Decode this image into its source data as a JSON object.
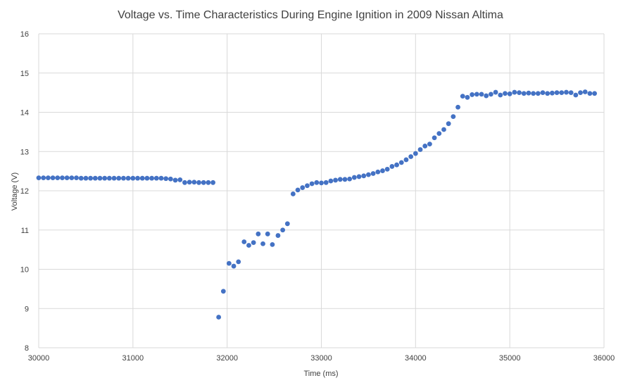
{
  "chart_data": {
    "type": "scatter",
    "title": "Voltage vs. Time Characteristics During Engine Ignition in 2009 Nissan Altima",
    "xlabel": "Time (ms)",
    "ylabel": "Voltage (V)",
    "xlim": [
      30000,
      36000
    ],
    "ylim": [
      8,
      16
    ],
    "xticks": [
      30000,
      31000,
      32000,
      33000,
      34000,
      35000,
      36000
    ],
    "yticks": [
      8,
      9,
      10,
      11,
      12,
      13,
      14,
      15,
      16
    ],
    "grid": true,
    "legend": "none",
    "marker_color": "#4472c4",
    "points": [
      [
        30000,
        12.33
      ],
      [
        30050,
        12.33
      ],
      [
        30100,
        12.33
      ],
      [
        30150,
        12.33
      ],
      [
        30200,
        12.33
      ],
      [
        30250,
        12.33
      ],
      [
        30300,
        12.33
      ],
      [
        30350,
        12.33
      ],
      [
        30400,
        12.33
      ],
      [
        30450,
        12.32
      ],
      [
        30500,
        12.32
      ],
      [
        30550,
        12.32
      ],
      [
        30600,
        12.32
      ],
      [
        30650,
        12.32
      ],
      [
        30700,
        12.32
      ],
      [
        30750,
        12.32
      ],
      [
        30800,
        12.32
      ],
      [
        30850,
        12.32
      ],
      [
        30900,
        12.32
      ],
      [
        30950,
        12.32
      ],
      [
        31000,
        12.32
      ],
      [
        31050,
        12.32
      ],
      [
        31100,
        12.32
      ],
      [
        31150,
        12.32
      ],
      [
        31200,
        12.32
      ],
      [
        31250,
        12.32
      ],
      [
        31300,
        12.32
      ],
      [
        31350,
        12.31
      ],
      [
        31400,
        12.3
      ],
      [
        31450,
        12.27
      ],
      [
        31500,
        12.28
      ],
      [
        31550,
        12.21
      ],
      [
        31600,
        12.22
      ],
      [
        31650,
        12.22
      ],
      [
        31700,
        12.21
      ],
      [
        31750,
        12.21
      ],
      [
        31800,
        12.21
      ],
      [
        31850,
        12.21
      ],
      [
        31910,
        8.78
      ],
      [
        31960,
        9.44
      ],
      [
        32020,
        10.15
      ],
      [
        32070,
        10.08
      ],
      [
        32120,
        10.19
      ],
      [
        32180,
        10.7
      ],
      [
        32230,
        10.61
      ],
      [
        32280,
        10.68
      ],
      [
        32330,
        10.9
      ],
      [
        32380,
        10.65
      ],
      [
        32430,
        10.9
      ],
      [
        32480,
        10.63
      ],
      [
        32540,
        10.86
      ],
      [
        32590,
        11.0
      ],
      [
        32640,
        11.16
      ],
      [
        32700,
        11.92
      ],
      [
        32750,
        12.02
      ],
      [
        32800,
        12.08
      ],
      [
        32850,
        12.13
      ],
      [
        32900,
        12.18
      ],
      [
        32950,
        12.21
      ],
      [
        33000,
        12.2
      ],
      [
        33050,
        12.21
      ],
      [
        33100,
        12.25
      ],
      [
        33150,
        12.27
      ],
      [
        33200,
        12.29
      ],
      [
        33250,
        12.29
      ],
      [
        33300,
        12.3
      ],
      [
        33350,
        12.34
      ],
      [
        33400,
        12.36
      ],
      [
        33450,
        12.38
      ],
      [
        33500,
        12.41
      ],
      [
        33550,
        12.44
      ],
      [
        33600,
        12.48
      ],
      [
        33650,
        12.51
      ],
      [
        33700,
        12.55
      ],
      [
        33750,
        12.62
      ],
      [
        33800,
        12.66
      ],
      [
        33850,
        12.72
      ],
      [
        33900,
        12.79
      ],
      [
        33950,
        12.87
      ],
      [
        34000,
        12.95
      ],
      [
        34050,
        13.05
      ],
      [
        34100,
        13.14
      ],
      [
        34150,
        13.19
      ],
      [
        34200,
        13.35
      ],
      [
        34250,
        13.46
      ],
      [
        34300,
        13.56
      ],
      [
        34350,
        13.71
      ],
      [
        34400,
        13.89
      ],
      [
        34450,
        14.13
      ],
      [
        34500,
        14.41
      ],
      [
        34550,
        14.38
      ],
      [
        34600,
        14.45
      ],
      [
        34650,
        14.46
      ],
      [
        34700,
        14.46
      ],
      [
        34750,
        14.42
      ],
      [
        34800,
        14.46
      ],
      [
        34850,
        14.51
      ],
      [
        34900,
        14.44
      ],
      [
        34950,
        14.48
      ],
      [
        35000,
        14.47
      ],
      [
        35050,
        14.51
      ],
      [
        35100,
        14.5
      ],
      [
        35150,
        14.48
      ],
      [
        35200,
        14.49
      ],
      [
        35250,
        14.48
      ],
      [
        35300,
        14.48
      ],
      [
        35350,
        14.5
      ],
      [
        35400,
        14.48
      ],
      [
        35450,
        14.49
      ],
      [
        35500,
        14.5
      ],
      [
        35550,
        14.5
      ],
      [
        35600,
        14.51
      ],
      [
        35650,
        14.5
      ],
      [
        35700,
        14.44
      ],
      [
        35750,
        14.5
      ],
      [
        35800,
        14.52
      ],
      [
        35850,
        14.48
      ],
      [
        35900,
        14.48
      ]
    ]
  }
}
